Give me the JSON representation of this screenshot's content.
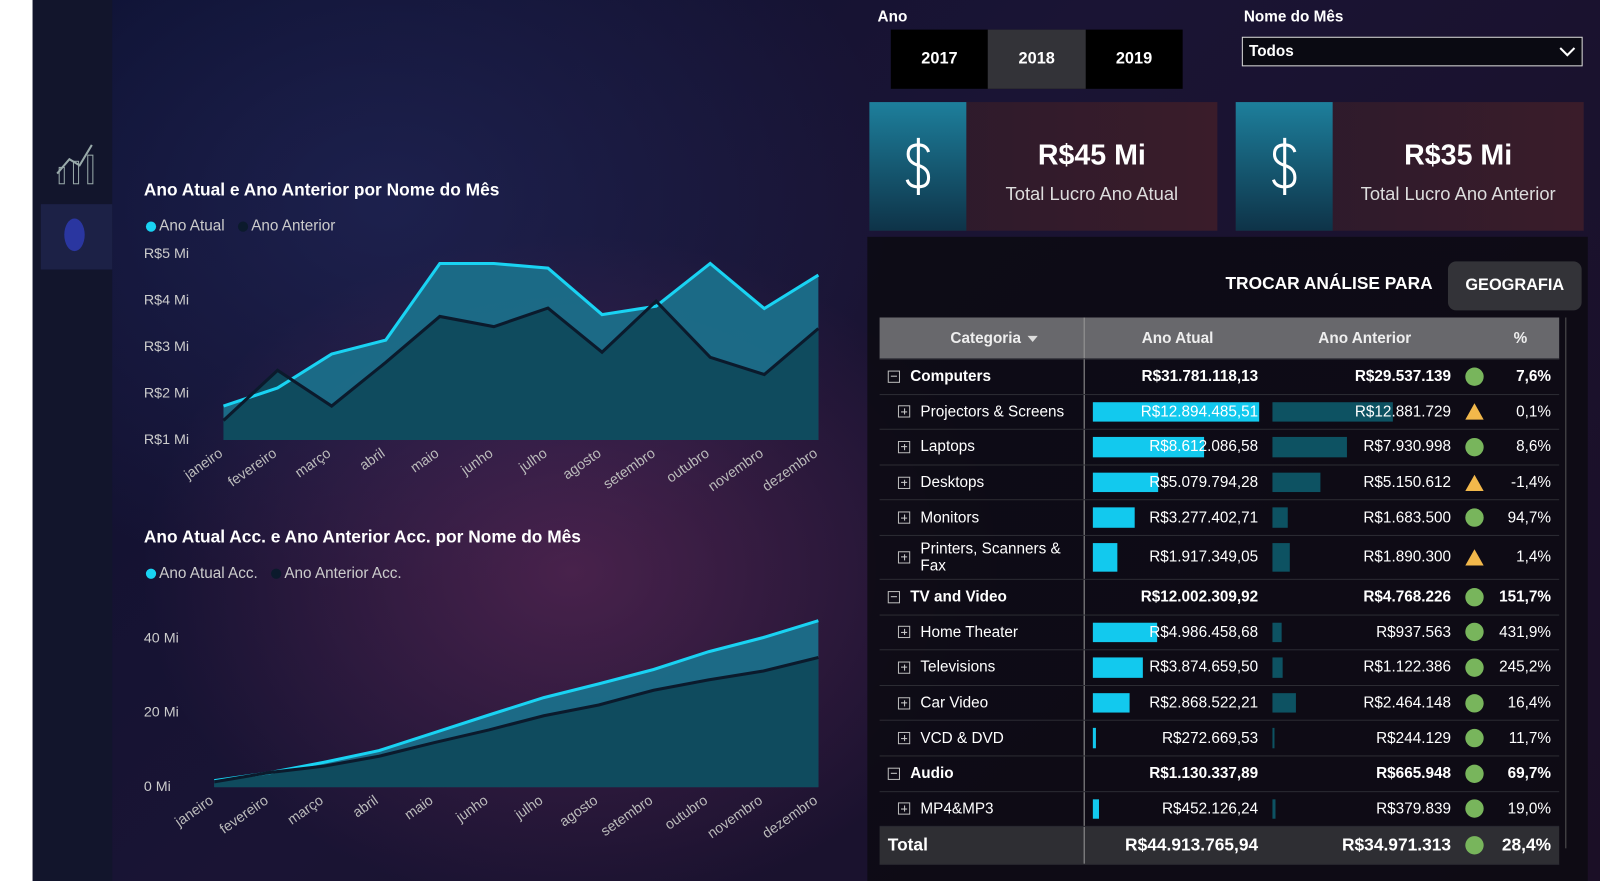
{
  "filters": {
    "year_label": "Ano",
    "years": [
      "2017",
      "2018",
      "2019"
    ],
    "selected_year": "2018",
    "month_label": "Nome do Mês",
    "month_value": "Todos"
  },
  "kpis": [
    {
      "value": "R$45 Mi",
      "label": "Total Lucro Ano Atual"
    },
    {
      "value": "R$35 Mi",
      "label": "Total Lucro Ano Anterior"
    }
  ],
  "analysis_switch": {
    "label": "TROCAR ANÁLISE PARA",
    "button": "GEOGRAFIA"
  },
  "table": {
    "columns": [
      "Categoria",
      "Ano Atual",
      "Ano Anterior",
      "%"
    ],
    "rows": [
      {
        "level": "group",
        "name": "Computers",
        "atual_label": "R$31.781.118,13",
        "anterior_label": "R$29.537.139",
        "pct": "7,6%",
        "status": "good"
      },
      {
        "level": "child",
        "name": "Projectors & Screens",
        "atual": 12894485.51,
        "atual_label": "R$12.894.485,51",
        "anterior": 12881729,
        "anterior_label": "R$12.881.729",
        "pct": "0,1%",
        "status": "warn"
      },
      {
        "level": "child",
        "name": "Laptops",
        "atual": 8612086.58,
        "atual_label": "R$8.612.086,58",
        "anterior": 7930998,
        "anterior_label": "R$7.930.998",
        "pct": "8,6%",
        "status": "good"
      },
      {
        "level": "child",
        "name": "Desktops",
        "atual": 5079794.28,
        "atual_label": "R$5.079.794,28",
        "anterior": 5150612,
        "anterior_label": "R$5.150.612",
        "pct": "-1,4%",
        "status": "warn"
      },
      {
        "level": "child",
        "name": "Monitors",
        "atual": 3277402.71,
        "atual_label": "R$3.277.402,71",
        "anterior": 1683500,
        "anterior_label": "R$1.683.500",
        "pct": "94,7%",
        "status": "good"
      },
      {
        "level": "child",
        "name": "Printers, Scanners & Fax",
        "atual": 1917349.05,
        "atual_label": "R$1.917.349,05",
        "anterior": 1890300,
        "anterior_label": "R$1.890.300",
        "pct": "1,4%",
        "status": "warn"
      },
      {
        "level": "group",
        "name": "TV and Video",
        "atual_label": "R$12.002.309,92",
        "anterior_label": "R$4.768.226",
        "pct": "151,7%",
        "status": "good"
      },
      {
        "level": "child",
        "name": "Home Theater",
        "atual": 4986458.68,
        "atual_label": "R$4.986.458,68",
        "anterior": 937563,
        "anterior_label": "R$937.563",
        "pct": "431,9%",
        "status": "good"
      },
      {
        "level": "child",
        "name": "Televisions",
        "atual": 3874659.5,
        "atual_label": "R$3.874.659,50",
        "anterior": 1122386,
        "anterior_label": "R$1.122.386",
        "pct": "245,2%",
        "status": "good"
      },
      {
        "level": "child",
        "name": "Car Video",
        "atual": 2868522.21,
        "atual_label": "R$2.868.522,21",
        "anterior": 2464148,
        "anterior_label": "R$2.464.148",
        "pct": "16,4%",
        "status": "good"
      },
      {
        "level": "child",
        "name": "VCD & DVD",
        "atual": 272669.53,
        "atual_label": "R$272.669,53",
        "anterior": 244129,
        "anterior_label": "R$244.129",
        "pct": "11,7%",
        "status": "good"
      },
      {
        "level": "group",
        "name": "Audio",
        "atual_label": "R$1.130.337,89",
        "anterior_label": "R$665.948",
        "pct": "69,7%",
        "status": "good"
      },
      {
        "level": "child",
        "name": "MP4&MP3",
        "atual": 452126.24,
        "atual_label": "R$452.126,24",
        "anterior": 379839,
        "anterior_label": "R$379.839",
        "pct": "19,0%",
        "status": "good"
      }
    ],
    "total": {
      "name": "Total",
      "atual_label": "R$44.913.765,94",
      "anterior_label": "R$34.971.313",
      "pct": "28,4%",
      "status": "good"
    }
  },
  "chart_data": [
    {
      "type": "area",
      "title": "Ano Atual e Ano Anterior por Nome do Mês",
      "categories": [
        "janeiro",
        "fevereiro",
        "março",
        "abril",
        "maio",
        "junho",
        "julho",
        "agosto",
        "setembro",
        "outubro",
        "novembro",
        "dezembro"
      ],
      "series": [
        {
          "name": "Ano Atual",
          "color": "#19d3f3",
          "values": [
            1730000,
            2120000,
            2850000,
            3150000,
            4800000,
            4800000,
            4700000,
            3700000,
            3880000,
            4800000,
            3830000,
            4550000
          ]
        },
        {
          "name": "Ano Anterior",
          "color": "#0b1a2c",
          "values": [
            1420000,
            2500000,
            1730000,
            2670000,
            3660000,
            3440000,
            3840000,
            2890000,
            3990000,
            2780000,
            2410000,
            3400000
          ]
        }
      ],
      "ylim": [
        1000000,
        5000000
      ],
      "yticks": [
        {
          "value": 1000000,
          "label": "R$1 Mi"
        },
        {
          "value": 2000000,
          "label": "R$2 Mi"
        },
        {
          "value": 3000000,
          "label": "R$3 Mi"
        },
        {
          "value": 4000000,
          "label": "R$4 Mi"
        },
        {
          "value": 5000000,
          "label": "R$5 Mi"
        }
      ],
      "grid": false
    },
    {
      "type": "area",
      "title": "Ano Atual Acc. e Ano Anterior Acc. por Nome do Mês",
      "categories": [
        "janeiro",
        "fevereiro",
        "março",
        "abril",
        "maio",
        "junho",
        "julho",
        "agosto",
        "setembro",
        "outubro",
        "novembro",
        "dezembro"
      ],
      "series": [
        {
          "name": "Ano Atual Acc.",
          "color": "#19d3f3",
          "values": [
            1730000,
            3850000,
            6700000,
            9850000,
            14650000,
            19450000,
            24150000,
            27850000,
            31730000,
            36530000,
            40360000,
            44910000
          ]
        },
        {
          "name": "Ano Anterior Acc.",
          "color": "#0b1a2c",
          "values": [
            1420000,
            3920000,
            5650000,
            8320000,
            11980000,
            15420000,
            19260000,
            22150000,
            26140000,
            28920000,
            31330000,
            34970000
          ]
        }
      ],
      "ylim": [
        0,
        50000000
      ],
      "yticks": [
        {
          "value": 0,
          "label": "0 Mi"
        },
        {
          "value": 20000000,
          "label": "20 Mi"
        },
        {
          "value": 40000000,
          "label": "40 Mi"
        }
      ],
      "grid": false
    }
  ]
}
